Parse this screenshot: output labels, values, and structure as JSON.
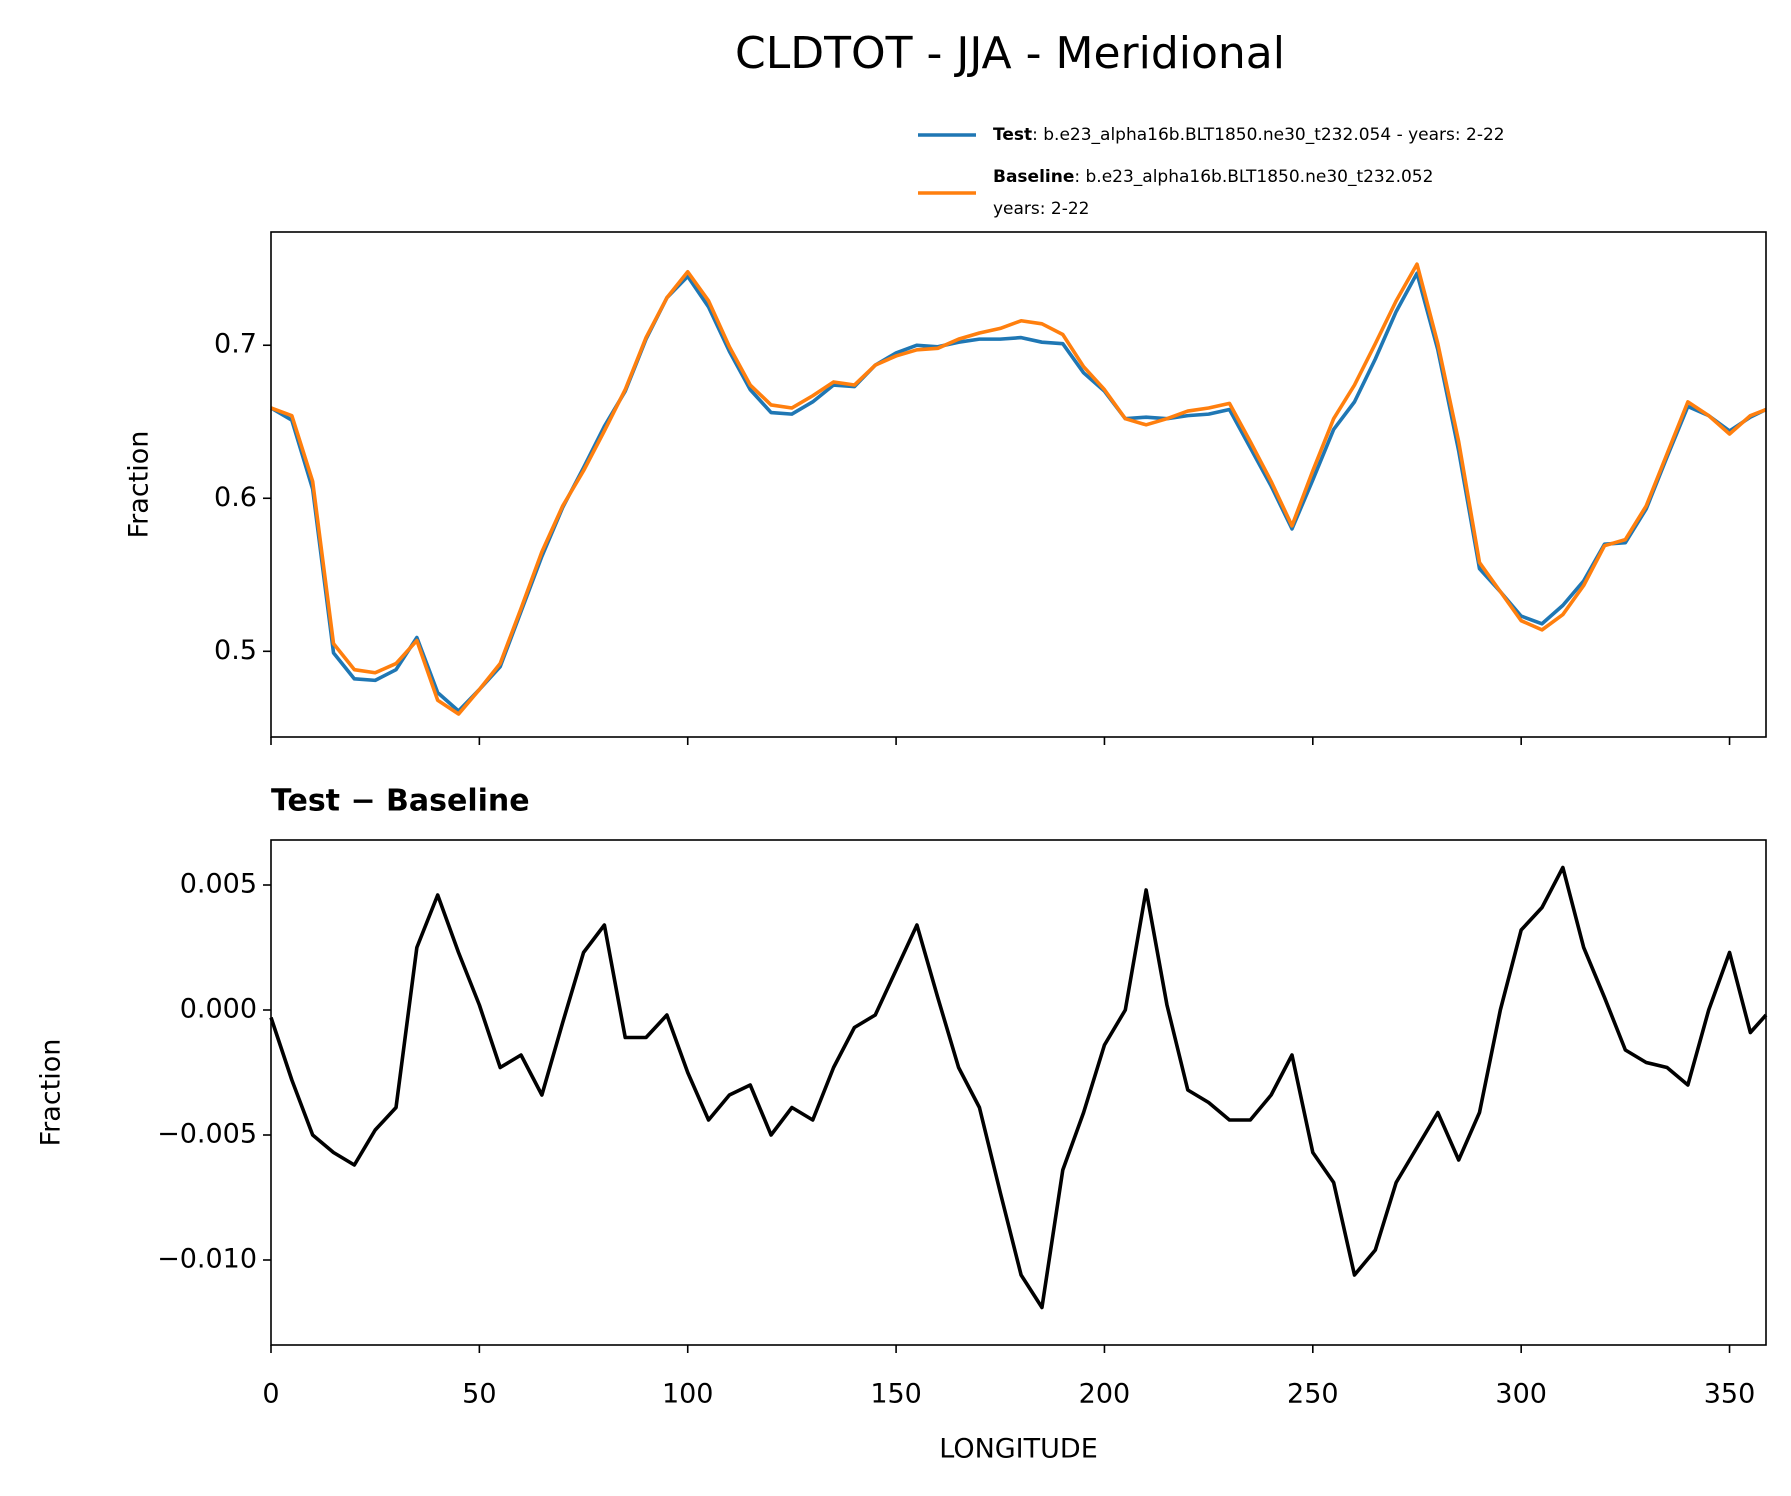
{
  "chart_data": [
    {
      "type": "line",
      "title": "CLDTOT - JJA - Meridional",
      "ylabel": "Fraction",
      "x": [
        0,
        5,
        10,
        15,
        20,
        25,
        30,
        35,
        40,
        45,
        50,
        55,
        60,
        65,
        70,
        75,
        80,
        85,
        90,
        95,
        100,
        105,
        110,
        115,
        120,
        125,
        130,
        135,
        140,
        145,
        150,
        155,
        160,
        165,
        170,
        175,
        180,
        185,
        190,
        195,
        200,
        205,
        210,
        215,
        220,
        225,
        230,
        235,
        240,
        245,
        250,
        255,
        260,
        265,
        270,
        275,
        280,
        285,
        290,
        295,
        300,
        305,
        310,
        315,
        320,
        325,
        330,
        335,
        340,
        345,
        350,
        355,
        358.75
      ],
      "series": [
        {
          "name": "Test",
          "description": [
            ": b.e23_alpha16b.BLT1850.ne30_t232.054 - years: 2-22"
          ],
          "color": "#1f77b4",
          "values": [
            0.659,
            0.651,
            0.606,
            0.499,
            0.482,
            0.481,
            0.488,
            0.509,
            0.473,
            0.461,
            0.475,
            0.49,
            0.526,
            0.562,
            0.594,
            0.62,
            0.647,
            0.67,
            0.704,
            0.731,
            0.745,
            0.725,
            0.696,
            0.671,
            0.656,
            0.655,
            0.663,
            0.674,
            0.673,
            0.687,
            0.695,
            0.7,
            0.699,
            0.702,
            0.704,
            0.704,
            0.705,
            0.702,
            0.701,
            0.682,
            0.67,
            0.652,
            0.653,
            0.652,
            0.654,
            0.655,
            0.658,
            0.633,
            0.608,
            0.58,
            0.612,
            0.645,
            0.663,
            0.691,
            0.722,
            0.747,
            0.697,
            0.631,
            0.554,
            0.539,
            0.523,
            0.518,
            0.53,
            0.546,
            0.57,
            0.571,
            0.593,
            0.627,
            0.66,
            0.654,
            0.644,
            0.653,
            0.658
          ]
        },
        {
          "name": "Baseline",
          "description": [
            ": b.e23_alpha16b.BLT1850.ne30_t232.052",
            "years: 2-22"
          ],
          "color": "#ff7f0e",
          "values": [
            0.659,
            0.654,
            0.611,
            0.505,
            0.488,
            0.486,
            0.492,
            0.507,
            0.468,
            0.459,
            0.475,
            0.492,
            0.528,
            0.565,
            0.595,
            0.618,
            0.644,
            0.671,
            0.705,
            0.731,
            0.748,
            0.729,
            0.699,
            0.674,
            0.661,
            0.659,
            0.667,
            0.676,
            0.674,
            0.687,
            0.693,
            0.697,
            0.698,
            0.704,
            0.708,
            0.711,
            0.716,
            0.714,
            0.707,
            0.686,
            0.671,
            0.652,
            0.648,
            0.652,
            0.657,
            0.659,
            0.662,
            0.637,
            0.611,
            0.582,
            0.618,
            0.652,
            0.674,
            0.701,
            0.729,
            0.753,
            0.701,
            0.637,
            0.558,
            0.539,
            0.52,
            0.514,
            0.524,
            0.543,
            0.569,
            0.573,
            0.595,
            0.629,
            0.663,
            0.654,
            0.642,
            0.654,
            0.658
          ]
        }
      ],
      "xlim": [
        0,
        358.75
      ],
      "xticks": [
        0,
        50,
        100,
        150,
        200,
        250,
        300,
        350
      ],
      "show_xtick_labels": false,
      "ylim": [
        0.444,
        0.774
      ],
      "yticks": [
        0.5,
        0.6,
        0.7
      ]
    },
    {
      "type": "line",
      "title": "Test − Baseline",
      "ylabel": "Fraction",
      "xlabel": "LONGITUDE",
      "x": [
        0,
        5,
        10,
        15,
        20,
        25,
        30,
        35,
        40,
        45,
        50,
        55,
        60,
        65,
        70,
        75,
        80,
        85,
        90,
        95,
        100,
        105,
        110,
        115,
        120,
        125,
        130,
        135,
        140,
        145,
        150,
        155,
        160,
        165,
        170,
        175,
        180,
        185,
        190,
        195,
        200,
        205,
        210,
        215,
        220,
        225,
        230,
        235,
        240,
        245,
        250,
        255,
        260,
        265,
        270,
        275,
        280,
        285,
        290,
        295,
        300,
        305,
        310,
        315,
        320,
        325,
        330,
        335,
        340,
        345,
        350,
        355,
        358.75
      ],
      "series": [
        {
          "color": "#000000",
          "values": [
            -0.0003,
            -0.0028,
            -0.005,
            -0.0057,
            -0.0062,
            -0.0048,
            -0.0039,
            0.0025,
            0.0046,
            0.0023,
            0.0002,
            -0.0023,
            -0.0018,
            -0.0034,
            -0.0005,
            0.0023,
            0.0034,
            -0.0011,
            -0.0011,
            -0.0002,
            -0.0025,
            -0.0044,
            -0.0034,
            -0.003,
            -0.005,
            -0.0039,
            -0.0044,
            -0.0023,
            -0.0007,
            -0.0002,
            0.0016,
            0.0034,
            0.0005,
            -0.0023,
            -0.0039,
            -0.0073,
            -0.0106,
            -0.0119,
            -0.0064,
            -0.0041,
            -0.0014,
            0.0,
            0.0048,
            0.0002,
            -0.0032,
            -0.0037,
            -0.0044,
            -0.0044,
            -0.0034,
            -0.0018,
            -0.0057,
            -0.0069,
            -0.0106,
            -0.0096,
            -0.0069,
            -0.0055,
            -0.0041,
            -0.006,
            -0.0041,
            0.0,
            0.0032,
            0.0041,
            0.0057,
            0.0025,
            0.0005,
            -0.0016,
            -0.0021,
            -0.0023,
            -0.003,
            0.0,
            0.0023,
            -0.0009,
            -0.0002
          ]
        }
      ],
      "xlim": [
        0,
        358.75
      ],
      "xticks": [
        0,
        50,
        100,
        150,
        200,
        250,
        300,
        350
      ],
      "show_xtick_labels": true,
      "ylim": [
        -0.0134,
        0.0068
      ],
      "yticks": [
        {
          "value": -0.01,
          "label": "−0.010"
        },
        {
          "value": -0.005,
          "label": "−0.005"
        },
        {
          "value": 0,
          "label": "0.000"
        },
        0.005
      ]
    }
  ]
}
